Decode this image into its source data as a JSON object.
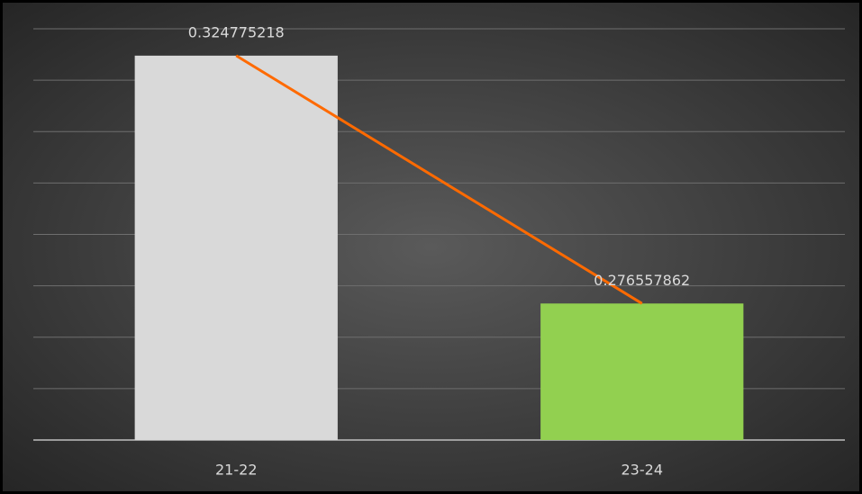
{
  "chart_data": {
    "type": "bar",
    "categories": [
      "21-22",
      "23-24"
    ],
    "values": [
      0.324775218,
      0.276557862
    ],
    "bar_colors": [
      "#d9d9d9",
      "#92d050"
    ],
    "line_color": "#ff6a00",
    "ylim": [
      0.25,
      0.33
    ],
    "yticks": [
      0.25,
      0.26,
      0.27,
      0.28,
      0.29,
      0.3,
      0.31,
      0.32,
      0.33
    ],
    "grid": true
  }
}
